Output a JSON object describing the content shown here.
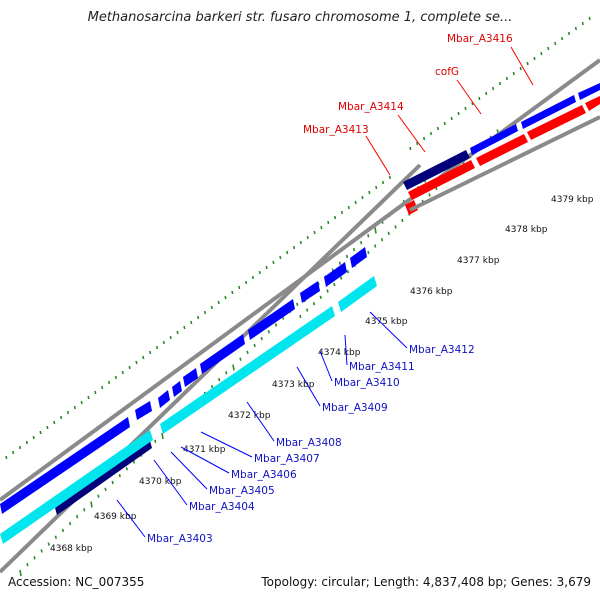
{
  "title": "Methanosarcina barkeri str. fusaro chromosome 1, complete se...",
  "footer": {
    "accession": "Accession: NC_007355",
    "summary": "Topology: circular; Length: 4,837,408 bp; Genes: 3,679"
  },
  "scale": {
    "ticks": [
      "4368 kbp",
      "4369 kbp",
      "4370 kbp",
      "4371 kbp",
      "4372 kbp",
      "4373 kbp",
      "4374 kbp",
      "4375 kbp",
      "4376 kbp",
      "4377 kbp",
      "4378 kbp",
      "4379 kbp"
    ]
  },
  "genes_forward": [
    {
      "label": "Mbar_A3413",
      "color": "#ff0000"
    },
    {
      "label": "Mbar_A3414",
      "color": "#ff0000"
    },
    {
      "label": "cofG",
      "color": "#ff0000"
    },
    {
      "label": "Mbar_A3416",
      "color": "#ff0000"
    }
  ],
  "genes_reverse": [
    {
      "label": "Mbar_A3403",
      "color": "#0000ff"
    },
    {
      "label": "Mbar_A3404",
      "color": "#0000ff"
    },
    {
      "label": "Mbar_A3405",
      "color": "#0000ff"
    },
    {
      "label": "Mbar_A3406",
      "color": "#0000ff"
    },
    {
      "label": "Mbar_A3407",
      "color": "#0000ff"
    },
    {
      "label": "Mbar_A3408",
      "color": "#0000ff"
    },
    {
      "label": "Mbar_A3409",
      "color": "#0000ff"
    },
    {
      "label": "Mbar_A3410",
      "color": "#0000ff"
    },
    {
      "label": "Mbar_A3411",
      "color": "#0000ff"
    },
    {
      "label": "Mbar_A3412",
      "color": "#0000ff"
    }
  ],
  "colors": {
    "backbone": "#8a8a8a",
    "tick": "#2a8a2a",
    "forward_cds": "#ff0000",
    "reverse_cds": "#0000ff",
    "orf": "#00e5ee",
    "navy": "#00007a"
  }
}
